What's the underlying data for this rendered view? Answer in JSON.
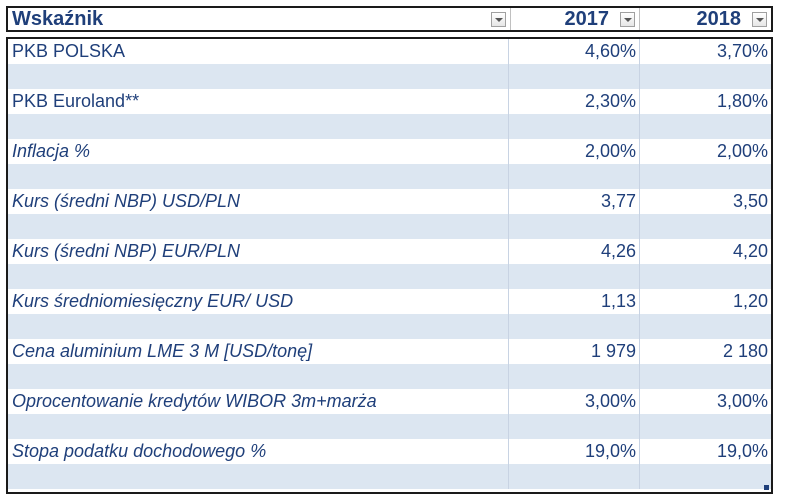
{
  "header": {
    "col_indicator": "Wskaźnik",
    "col_2017": "2017",
    "col_2018": "2018"
  },
  "rows": [
    {
      "label": "PKB POLSKA",
      "v2017": "4,60%",
      "v2018": "3,70%"
    },
    {
      "label": "PKB Euroland**",
      "v2017": "2,30%",
      "v2018": "1,80%"
    },
    {
      "label": "Inflacja %",
      "v2017": "2,00%",
      "v2018": "2,00%"
    },
    {
      "label": "Kurs (średni NBP) USD/PLN",
      "v2017": "3,77",
      "v2018": "3,50"
    },
    {
      "label": "Kurs (średni NBP) EUR/PLN",
      "v2017": "4,26",
      "v2018": "4,20"
    },
    {
      "label": "Kurs średniomiesięczny  EUR/ USD",
      "v2017": "1,13",
      "v2018": "1,20"
    },
    {
      "label": "Cena aluminium LME 3 M [USD/tonę]",
      "v2017": "1 979",
      "v2018": "2 180"
    },
    {
      "label": "Oprocentowanie kredytów WIBOR 3m+marża",
      "v2017": "3,00%",
      "v2018": "3,00%"
    },
    {
      "label": "Stopa podatku dochodowego %",
      "v2017": "19,0%",
      "v2018": "19,0%"
    }
  ],
  "colors": {
    "text": "#1f3f7a",
    "band": "#dce6f1"
  }
}
